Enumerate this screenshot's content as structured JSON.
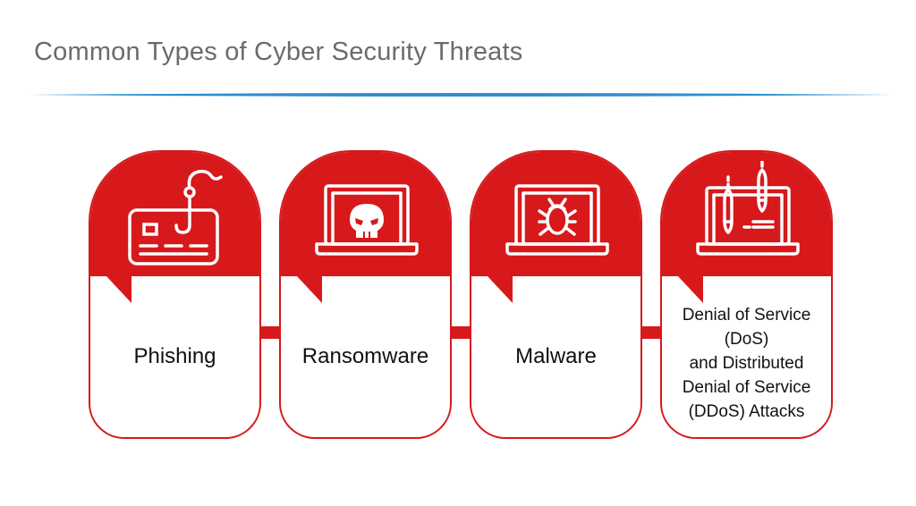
{
  "title": "Common Types of Cyber Security Threats",
  "colors": {
    "accent": "#d7191c",
    "rule": "#2a8fd0",
    "title": "#6b6b6b"
  },
  "cards": [
    {
      "label": "Phishing",
      "icon": "credit-card-fishhook-icon"
    },
    {
      "label": "Ransomware",
      "icon": "laptop-skull-icon"
    },
    {
      "label": "Malware",
      "icon": "laptop-bug-icon"
    },
    {
      "label": "Denial of Service (DoS) and Distributed Denial of Service (DDoS) Attacks",
      "lines": [
        "Denial of Service",
        "(DoS)",
        "and Distributed",
        "Denial of Service",
        "(DDoS) Attacks"
      ],
      "icon": "laptop-missiles-icon"
    }
  ]
}
